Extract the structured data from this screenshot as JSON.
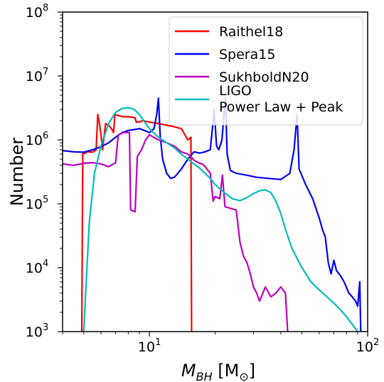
{
  "chart_data": {
    "type": "line",
    "xscale": "log",
    "yscale": "log",
    "xlim": [
      4,
      100
    ],
    "ylim": [
      1000,
      100000000
    ],
    "xlabel_main": "M",
    "xlabel_sub": "BH",
    "xlabel_unit_open": " [M",
    "xlabel_unit_sub": "⊙",
    "xlabel_unit_close": "]",
    "ylabel": "Number",
    "x_ticks": [
      {
        "value": 10,
        "base": "10",
        "exp": "1"
      },
      {
        "value": 100,
        "base": "10",
        "exp": "2"
      }
    ],
    "y_ticks": [
      {
        "value": 1000,
        "base": "10",
        "exp": "3"
      },
      {
        "value": 10000,
        "base": "10",
        "exp": "4"
      },
      {
        "value": 100000,
        "base": "10",
        "exp": "5"
      },
      {
        "value": 1000000,
        "base": "10",
        "exp": "6"
      },
      {
        "value": 10000000,
        "base": "10",
        "exp": "7"
      },
      {
        "value": 100000000,
        "base": "10",
        "exp": "8"
      }
    ],
    "legend_position": "top-right",
    "series": [
      {
        "name": "Raithel18",
        "color": "#ff0000",
        "points": [
          [
            4.9,
            1000
          ],
          [
            4.95,
            600000
          ],
          [
            5.2,
            650000
          ],
          [
            5.5,
            640000
          ],
          [
            5.7,
            700000
          ],
          [
            5.8,
            2500000
          ],
          [
            5.9,
            1800000
          ],
          [
            6.0,
            1200000
          ],
          [
            6.1,
            700000
          ],
          [
            6.3,
            1800000
          ],
          [
            6.5,
            1700000
          ],
          [
            6.7,
            1500000
          ],
          [
            6.85,
            1300000
          ],
          [
            6.95,
            2500000
          ],
          [
            7.2,
            2400000
          ],
          [
            7.6,
            2300000
          ],
          [
            8.0,
            2300000
          ],
          [
            8.4,
            2250000
          ],
          [
            8.6,
            2200000
          ],
          [
            8.7,
            1900000
          ],
          [
            9.0,
            1900000
          ],
          [
            9.3,
            2000000
          ],
          [
            10.0,
            1900000
          ],
          [
            11.0,
            1800000
          ],
          [
            12.0,
            1700000
          ],
          [
            13.0,
            1600000
          ],
          [
            14.0,
            1500000
          ],
          [
            15.0,
            1000000
          ],
          [
            15.5,
            1100000
          ],
          [
            15.6,
            1000
          ]
        ]
      },
      {
        "name": "Spera15",
        "color": "#0000ee",
        "points": [
          [
            4.0,
            680000
          ],
          [
            4.5,
            650000
          ],
          [
            5.0,
            640000
          ],
          [
            5.5,
            700000
          ],
          [
            6.0,
            780000
          ],
          [
            6.5,
            900000
          ],
          [
            7.0,
            1100000
          ],
          [
            7.5,
            1300000
          ],
          [
            8.0,
            1400000
          ],
          [
            8.5,
            1450000
          ],
          [
            9.0,
            1500000
          ],
          [
            9.5,
            1400000
          ],
          [
            10.0,
            1300000
          ],
          [
            10.5,
            1500000
          ],
          [
            10.8,
            2500000
          ],
          [
            11.0,
            4500000
          ],
          [
            11.2,
            1200000
          ],
          [
            11.5,
            500000
          ],
          [
            12.0,
            300000
          ],
          [
            12.5,
            250000
          ],
          [
            13.0,
            260000
          ],
          [
            13.5,
            300000
          ],
          [
            14.0,
            350000
          ],
          [
            15.0,
            500000
          ],
          [
            16.0,
            650000
          ],
          [
            17.0,
            620000
          ],
          [
            18.0,
            650000
          ],
          [
            19.0,
            700000
          ],
          [
            19.3,
            1200000
          ],
          [
            19.8,
            3000000
          ],
          [
            20.3,
            800000
          ],
          [
            20.8,
            700000
          ],
          [
            21.5,
            1000000
          ],
          [
            22.3,
            4500000
          ],
          [
            22.7,
            600000
          ],
          [
            23.5,
            330000
          ],
          [
            25.0,
            300000
          ],
          [
            28.0,
            280000
          ],
          [
            31.0,
            260000
          ],
          [
            35.0,
            250000
          ],
          [
            40.0,
            240000
          ],
          [
            44.0,
            300000
          ],
          [
            46.0,
            700000
          ],
          [
            47.5,
            2500000
          ],
          [
            48.5,
            350000
          ],
          [
            52.0,
            200000
          ],
          [
            56.0,
            120000
          ],
          [
            60.0,
            60000
          ],
          [
            62.0,
            40000
          ],
          [
            64.0,
            30000
          ],
          [
            66.0,
            12000
          ],
          [
            68.0,
            8000
          ],
          [
            70.0,
            13000
          ],
          [
            72.0,
            9000
          ],
          [
            75.0,
            7500
          ],
          [
            78.0,
            6000
          ],
          [
            82.0,
            4000
          ],
          [
            85.0,
            3500
          ],
          [
            88.0,
            3000
          ],
          [
            90.0,
            2500
          ],
          [
            92.0,
            6000
          ],
          [
            93.0,
            1000
          ]
        ]
      },
      {
        "name": "SukhboldN20",
        "color": "#bb00bb",
        "points": [
          [
            4.0,
            420000
          ],
          [
            4.5,
            400000
          ],
          [
            5.0,
            430000
          ],
          [
            5.5,
            440000
          ],
          [
            6.0,
            420000
          ],
          [
            6.5,
            380000
          ],
          [
            7.0,
            440000
          ],
          [
            7.2,
            1200000
          ],
          [
            7.6,
            1300000
          ],
          [
            8.1,
            1300000
          ],
          [
            8.2,
            80000
          ],
          [
            8.6,
            75000
          ],
          [
            8.8,
            550000
          ],
          [
            9.2,
            700000
          ],
          [
            9.6,
            1000000
          ],
          [
            10.0,
            1200000
          ],
          [
            11.0,
            1000000
          ],
          [
            12.0,
            900000
          ],
          [
            13.0,
            800000
          ],
          [
            14.0,
            650000
          ],
          [
            15.0,
            600000
          ],
          [
            15.5,
            550000
          ],
          [
            16.0,
            480000
          ],
          [
            17.0,
            430000
          ],
          [
            17.5,
            420000
          ],
          [
            18.0,
            380000
          ],
          [
            19.0,
            300000
          ],
          [
            19.6,
            110000
          ],
          [
            20.0,
            130000
          ],
          [
            21.0,
            120000
          ],
          [
            21.6,
            280000
          ],
          [
            22.2,
            90000
          ],
          [
            23.5,
            85000
          ],
          [
            25.0,
            80000
          ],
          [
            26.0,
            25000
          ],
          [
            27.0,
            15000
          ],
          [
            28.0,
            12000
          ],
          [
            29.0,
            8000
          ],
          [
            30.0,
            5000
          ],
          [
            31.0,
            4000
          ],
          [
            32.0,
            3000
          ],
          [
            34.0,
            5000
          ],
          [
            36.0,
            3500
          ],
          [
            38.0,
            4000
          ],
          [
            40.0,
            5000
          ],
          [
            42.0,
            4000
          ],
          [
            43.0,
            1000
          ]
        ]
      },
      {
        "name": "LIGO",
        "name_line2": "Power Law + Peak",
        "color": "#00bbbb",
        "points": [
          [
            5.0,
            1000
          ],
          [
            5.3,
            50000
          ],
          [
            5.6,
            300000
          ],
          [
            6.0,
            800000
          ],
          [
            6.5,
            1800000
          ],
          [
            7.0,
            2700000
          ],
          [
            7.5,
            3100000
          ],
          [
            8.0,
            3200000
          ],
          [
            8.5,
            3000000
          ],
          [
            9.0,
            2500000
          ],
          [
            9.5,
            1900000
          ],
          [
            10.0,
            1500000
          ],
          [
            11.0,
            1100000
          ],
          [
            12.0,
            900000
          ],
          [
            13.0,
            750000
          ],
          [
            14.0,
            600000
          ],
          [
            15.0,
            500000
          ],
          [
            16.0,
            420000
          ],
          [
            17.0,
            360000
          ],
          [
            18.0,
            300000
          ],
          [
            19.0,
            250000
          ],
          [
            20.0,
            200000
          ],
          [
            22.0,
            150000
          ],
          [
            24.0,
            120000
          ],
          [
            26.0,
            112000
          ],
          [
            28.0,
            125000
          ],
          [
            30.0,
            145000
          ],
          [
            32.0,
            160000
          ],
          [
            34.0,
            165000
          ],
          [
            36.0,
            150000
          ],
          [
            38.0,
            110000
          ],
          [
            40.0,
            70000
          ],
          [
            42.0,
            40000
          ],
          [
            45.0,
            20000
          ],
          [
            50.0,
            10000
          ],
          [
            55.0,
            6000
          ],
          [
            60.0,
            4500
          ],
          [
            65.0,
            3500
          ],
          [
            70.0,
            2800
          ],
          [
            75.0,
            2200
          ],
          [
            80.0,
            1700
          ],
          [
            85.0,
            1300
          ],
          [
            90.0,
            1000
          ]
        ]
      }
    ]
  }
}
